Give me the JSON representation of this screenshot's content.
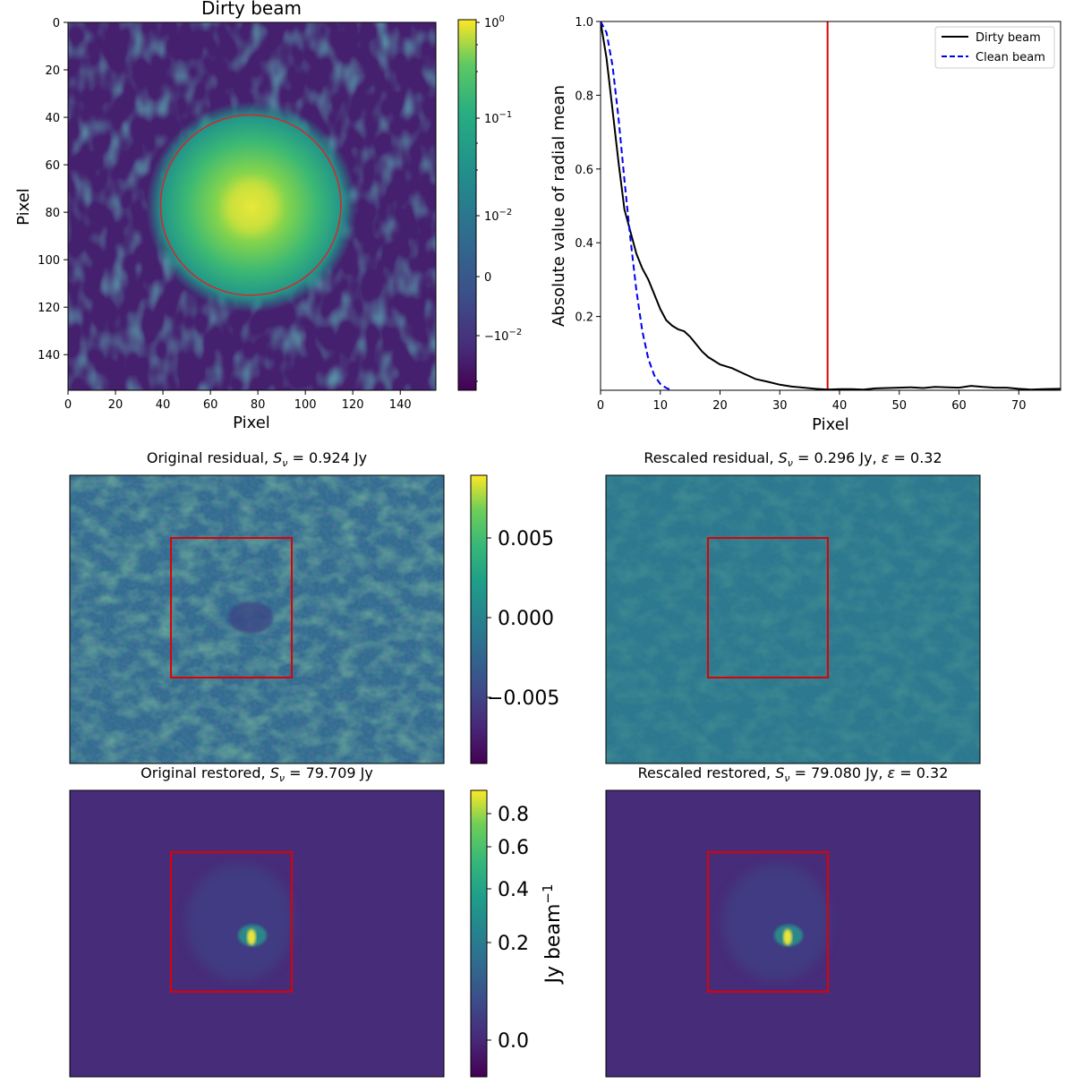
{
  "figure": {
    "panels": {
      "dirty_beam": {
        "title": "Dirty beam",
        "xlabel": "Pixel",
        "ylabel": "Pixel",
        "xticks": [
          "0",
          "20",
          "40",
          "60",
          "80",
          "100",
          "120",
          "140"
        ],
        "yticks": [
          "0",
          "20",
          "40",
          "60",
          "80",
          "100",
          "120",
          "140"
        ],
        "cbar_ticks": [
          {
            "base": "10",
            "exp": "0",
            "pre": ""
          },
          {
            "base": "10",
            "exp": "−1",
            "pre": ""
          },
          {
            "base": "10",
            "exp": "−2",
            "pre": ""
          },
          {
            "base": "0",
            "exp": "",
            "pre": ""
          },
          {
            "base": "10",
            "exp": "−2",
            "pre": "−"
          }
        ]
      },
      "radial_profile": {
        "xlabel": "Pixel",
        "ylabel": "Absolute value of radial mean",
        "legend": [
          "Dirty beam",
          "Clean beam"
        ],
        "xticks": [
          "0",
          "10",
          "20",
          "30",
          "40",
          "50",
          "60",
          "70"
        ],
        "yticks": [
          "0.2",
          "0.4",
          "0.6",
          "0.8",
          "1.0"
        ]
      },
      "orig_residual": {
        "title_pre": "Original residual, ",
        "title_post": " = 0.924 Jy"
      },
      "resc_residual": {
        "title_pre": "Rescaled residual, ",
        "title_post": " = 0.296 Jy, ",
        "eps_post": " = 0.32"
      },
      "orig_restored": {
        "title_pre": "Original restored, ",
        "title_post": " = 79.709 Jy"
      },
      "resc_restored": {
        "title_pre": "Rescaled restored, ",
        "title_post": " = 79.080 Jy, ",
        "eps_post": " = 0.32"
      },
      "residual_cbar": {
        "ticks": [
          "0.005",
          "0.000",
          "−0.005"
        ]
      },
      "restored_cbar": {
        "ticks": [
          "0.8",
          "0.6",
          "0.4",
          "0.2",
          "0.0"
        ],
        "label": "Jy beam",
        "label_exp": "−1"
      }
    }
  },
  "chart_data": [
    {
      "type": "heatmap",
      "title": "Dirty beam",
      "xlabel": "Pixel",
      "ylabel": "Pixel",
      "xlim": [
        0,
        155
      ],
      "ylim": [
        155,
        0
      ],
      "colorscale": "viridis",
      "colorbar_scale": "symlog",
      "colorbar_ticks": [
        "10^0",
        "10^-1",
        "10^-2",
        "0",
        "-10^-2"
      ],
      "peak": {
        "x": 77,
        "y": 77
      },
      "circle": {
        "cx": 77,
        "cy": 77,
        "r": 38,
        "color": "#d62728"
      }
    },
    {
      "type": "line",
      "xlabel": "Pixel",
      "ylabel": "Absolute value of radial mean",
      "xlim": [
        0,
        77
      ],
      "ylim": [
        0,
        1.0
      ],
      "legend_position": "top-right",
      "vline": {
        "x": 38,
        "color": "#e00000"
      },
      "series": [
        {
          "name": "Dirty beam",
          "color": "#000000",
          "dash": "solid",
          "x": [
            0,
            1,
            2,
            3,
            4,
            5,
            6,
            7,
            8,
            9,
            10,
            11,
            12,
            13,
            14,
            15,
            16,
            17,
            18,
            19,
            20,
            22,
            24,
            26,
            28,
            30,
            32,
            34,
            36,
            38,
            40,
            42,
            44,
            46,
            48,
            50,
            52,
            54,
            56,
            58,
            60,
            62,
            64,
            66,
            68,
            70,
            72,
            74,
            77
          ],
          "y": [
            1.0,
            0.9,
            0.76,
            0.62,
            0.49,
            0.43,
            0.37,
            0.33,
            0.3,
            0.26,
            0.22,
            0.19,
            0.175,
            0.165,
            0.16,
            0.145,
            0.125,
            0.105,
            0.09,
            0.08,
            0.07,
            0.06,
            0.045,
            0.03,
            0.023,
            0.015,
            0.01,
            0.007,
            0.004,
            0.002,
            0.003,
            0.003,
            0.002,
            0.005,
            0.006,
            0.007,
            0.008,
            0.006,
            0.009,
            0.008,
            0.007,
            0.012,
            0.009,
            0.007,
            0.007,
            0.004,
            0.002,
            0.003,
            0.004
          ]
        },
        {
          "name": "Clean beam",
          "color": "#0000ee",
          "dash": "dashed",
          "x": [
            0,
            1,
            2,
            3,
            4,
            5,
            6,
            7,
            8,
            9,
            10,
            11,
            12
          ],
          "y": [
            1.0,
            0.97,
            0.88,
            0.74,
            0.57,
            0.41,
            0.27,
            0.16,
            0.085,
            0.04,
            0.017,
            0.006,
            0.0
          ]
        }
      ]
    },
    {
      "type": "heatmap",
      "title": "Original residual, S_ν = 0.924 Jy",
      "colorscale": "viridis",
      "colorbar_ticks": [
        0.005,
        0.0,
        -0.005
      ],
      "clim": [
        -0.0093,
        0.0088
      ],
      "box_color": "#e00000"
    },
    {
      "type": "heatmap",
      "title": "Rescaled residual, S_ν = 0.296 Jy, ε = 0.32",
      "colorscale": "viridis",
      "clim": [
        -0.0093,
        0.0088
      ],
      "box_color": "#e00000"
    },
    {
      "type": "heatmap",
      "title": "Original restored, S_ν = 79.709 Jy",
      "colorscale": "viridis",
      "colorbar_label": "Jy beam^-1",
      "colorbar_ticks": [
        0.8,
        0.6,
        0.4,
        0.2,
        0.0
      ],
      "box_color": "#e00000"
    },
    {
      "type": "heatmap",
      "title": "Rescaled restored, S_ν = 79.080 Jy, ε = 0.32",
      "colorscale": "viridis",
      "box_color": "#e00000"
    }
  ]
}
